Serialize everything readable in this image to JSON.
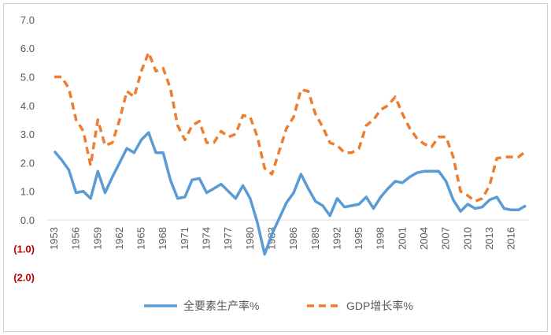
{
  "chart_data": {
    "type": "line",
    "title": "",
    "xlabel": "",
    "ylabel": "",
    "ylim": [
      -2,
      7
    ],
    "yticks": [
      {
        "value": 7,
        "label": "7.0"
      },
      {
        "value": 6,
        "label": "6.0"
      },
      {
        "value": 5,
        "label": "5.0"
      },
      {
        "value": 4,
        "label": "4.0"
      },
      {
        "value": 3,
        "label": "3.0"
      },
      {
        "value": 2,
        "label": "2.0"
      },
      {
        "value": 1,
        "label": "1.0"
      },
      {
        "value": 0,
        "label": "0.0"
      },
      {
        "value": -1,
        "label": "(1.0)"
      },
      {
        "value": -2,
        "label": "(2.0)"
      }
    ],
    "negative_label_color": "#c00000",
    "grid": false,
    "legend_position": "bottom",
    "xticks": [
      "1953",
      "1956",
      "1959",
      "1962",
      "1965",
      "1968",
      "1971",
      "1974",
      "1977",
      "1980",
      "1983",
      "1986",
      "1989",
      "1992",
      "1995",
      "1998",
      "2001",
      "2004",
      "2007",
      "2010",
      "2013",
      "2016"
    ],
    "x_start": 1953,
    "x_end": 2018,
    "series": [
      {
        "name": "全要素生产率%",
        "color": "#5b9bd5",
        "style": "solid",
        "values": [
          2.4,
          2.1,
          1.75,
          0.95,
          1.0,
          0.75,
          1.7,
          0.95,
          1.5,
          2.0,
          2.5,
          2.35,
          2.8,
          3.05,
          2.35,
          2.35,
          1.4,
          0.75,
          0.8,
          1.4,
          1.45,
          0.95,
          1.1,
          1.25,
          1.0,
          0.75,
          1.2,
          0.75,
          -0.1,
          -1.2,
          -0.5,
          0.05,
          0.6,
          0.95,
          1.6,
          1.1,
          0.65,
          0.5,
          0.15,
          0.75,
          0.45,
          0.5,
          0.55,
          0.8,
          0.4,
          0.8,
          1.1,
          1.35,
          1.3,
          1.5,
          1.65,
          1.7,
          1.7,
          1.7,
          1.35,
          0.7,
          0.3,
          0.55,
          0.4,
          0.45,
          0.7,
          0.8,
          0.4,
          0.35,
          0.35,
          0.5
        ]
      },
      {
        "name": "GDP增长率%",
        "color": "#ed7d31",
        "style": "dashed",
        "values": [
          5.0,
          5.0,
          4.6,
          3.5,
          3.1,
          1.9,
          3.5,
          2.6,
          2.7,
          3.5,
          4.5,
          4.3,
          5.2,
          5.85,
          5.2,
          5.3,
          4.6,
          3.3,
          2.8,
          3.3,
          3.45,
          2.7,
          2.7,
          3.1,
          2.9,
          3.0,
          3.65,
          3.6,
          2.9,
          1.8,
          1.6,
          2.4,
          3.2,
          3.6,
          4.55,
          4.5,
          3.7,
          3.25,
          2.7,
          2.6,
          2.35,
          2.35,
          2.5,
          3.3,
          3.5,
          3.85,
          4.0,
          4.3,
          3.7,
          3.2,
          2.85,
          2.65,
          2.55,
          2.9,
          2.9,
          2.2,
          1.0,
          0.85,
          0.65,
          0.75,
          1.2,
          2.15,
          2.2,
          2.2,
          2.2,
          2.4
        ]
      }
    ]
  }
}
